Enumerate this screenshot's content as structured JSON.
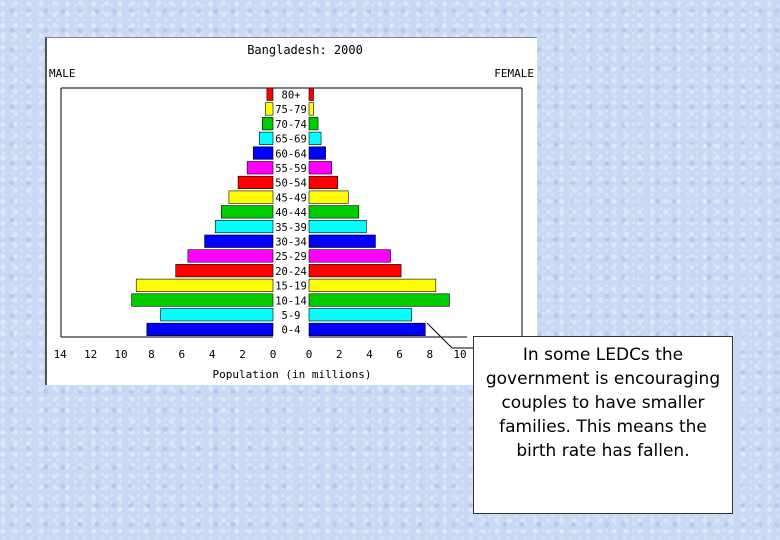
{
  "chart_data": {
    "type": "bar",
    "title": "Bangladesh: 2000",
    "left_label": "MALE",
    "right_label": "FEMALE",
    "xlabel": "Population (in millions)",
    "categories": [
      "80+",
      "75-79",
      "70-74",
      "65-69",
      "60-64",
      "55-59",
      "50-54",
      "45-49",
      "40-44",
      "35-39",
      "30-34",
      "25-29",
      "20-24",
      "15-19",
      "10-14",
      "5-9",
      "0-4"
    ],
    "series": [
      {
        "name": "MALE",
        "values": [
          0.4,
          0.5,
          0.7,
          0.9,
          1.3,
          1.7,
          2.3,
          2.9,
          3.4,
          3.8,
          4.5,
          5.6,
          6.4,
          9.0,
          9.3,
          7.4,
          8.3
        ]
      },
      {
        "name": "FEMALE",
        "values": [
          0.3,
          0.3,
          0.6,
          0.8,
          1.1,
          1.5,
          1.9,
          2.6,
          3.3,
          3.8,
          4.4,
          5.4,
          6.1,
          8.4,
          9.3,
          6.8,
          7.7
        ]
      }
    ],
    "bar_colors": [
      "#ff0000",
      "#ffff00",
      "#00cc00",
      "#00ffff",
      "#0000ff",
      "#ff00ff",
      "#ff0000",
      "#ffff00",
      "#00cc00",
      "#00ffff",
      "#0000ff",
      "#ff00ff",
      "#ff0000",
      "#ffff00",
      "#00cc00",
      "#00ffff",
      "#0000ff"
    ],
    "male_ticks": [
      "14",
      "12",
      "10",
      "8",
      "6",
      "4",
      "2",
      "0"
    ],
    "female_ticks": [
      "0",
      "2",
      "4",
      "6",
      "8",
      "10"
    ],
    "xlim_male": [
      0,
      14
    ],
    "xlim_female": [
      0,
      10
    ]
  },
  "caption": "In some LEDCs the government is encouraging couples to have smaller families.  This means the birth rate has fallen."
}
